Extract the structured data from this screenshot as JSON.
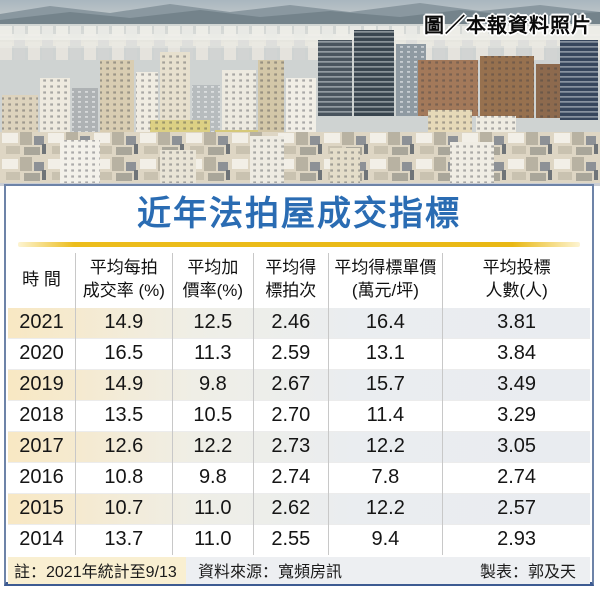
{
  "photo_credit": "圖／本報資料照片",
  "title": "近年法拍屋成交指標",
  "colors": {
    "title_blue": "#2a6cb3",
    "gold_bar": "#e9b814",
    "highlight_cream": "#f8e8c3",
    "highlight_gray": "#e9ecf0",
    "border_navy": "#3d5b92"
  },
  "chart_data": {
    "type": "table",
    "title": "近年法拍屋成交指標",
    "columns": [
      "時 間",
      "平均每拍成交率 (%)",
      "平均加價率(%)",
      "平均得標拍次",
      "平均得標單價(萬元/坪)",
      "平均投標人數(人)"
    ],
    "column_lines": [
      [
        "時 間"
      ],
      [
        "平均每拍",
        "成交率 (%)"
      ],
      [
        "平均加",
        "價率(%)"
      ],
      [
        "平均得",
        "標拍次"
      ],
      [
        "平均得標單價",
        "(萬元/坪)"
      ],
      [
        "平均投標",
        "人數(人)"
      ]
    ],
    "years": [
      "2021",
      "2020",
      "2019",
      "2018",
      "2017",
      "2016",
      "2015",
      "2014"
    ],
    "rows": [
      [
        "14.9",
        "12.5",
        "2.46",
        "16.4",
        "3.81"
      ],
      [
        "16.5",
        "11.3",
        "2.59",
        "13.1",
        "3.84"
      ],
      [
        "14.9",
        "9.8",
        "2.67",
        "15.7",
        "3.49"
      ],
      [
        "13.5",
        "10.5",
        "2.70",
        "11.4",
        "3.29"
      ],
      [
        "12.6",
        "12.2",
        "2.73",
        "12.2",
        "3.05"
      ],
      [
        "10.8",
        "9.8",
        "2.74",
        "7.8",
        "2.74"
      ],
      [
        "10.7",
        "11.0",
        "2.62",
        "12.2",
        "2.57"
      ],
      [
        "13.7",
        "11.0",
        "2.55",
        "9.4",
        "2.93"
      ]
    ],
    "highlighted_years": [
      "2021",
      "2019",
      "2017",
      "2015"
    ]
  },
  "footer": {
    "note": "註：2021年統計至9/13",
    "source": "資料來源：寬頻房訊",
    "credit": "製表：郭及天"
  }
}
